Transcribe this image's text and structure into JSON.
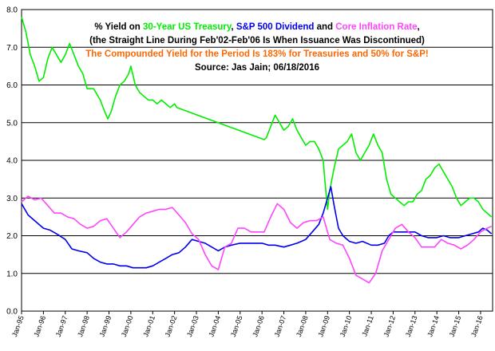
{
  "chart_data": {
    "type": "line",
    "title_lines": [
      [
        {
          "text": "% Yield on ",
          "color": "#000000"
        },
        {
          "text": "30-Year US Treasury",
          "color": "#00ee00"
        },
        {
          "text": ", ",
          "color": "#000000"
        },
        {
          "text": "S&P 500 Dividend",
          "color": "#0000ee"
        },
        {
          "text": " and ",
          "color": "#000000"
        },
        {
          "text": "Core Inflation Rate",
          "color": "#ff44ff"
        },
        {
          "text": ",",
          "color": "#000000"
        }
      ],
      [
        {
          "text": "(the Straight Line During Feb'02-Feb'06 Is When Issuance Was Discontinued)",
          "color": "#000000"
        }
      ],
      [
        {
          "text": "The Compounded Yield for the Period Is 183% for Treasuries and 50% for S&P!",
          "color": "#ff6600"
        }
      ],
      [
        {
          "text": "Source: Jas Jain; 06/18/2016",
          "color": "#000000"
        }
      ]
    ],
    "x_tick_labels": [
      "Jan-95",
      "Jan-96",
      "Jan-97",
      "Jan-98",
      "Jan-99",
      "Jan-00",
      "Jan-01",
      "Jan-02",
      "Jan-03",
      "Jan-04",
      "Jan-05",
      "Jan-06",
      "Jan-07",
      "Jan-08",
      "Jan-09",
      "Jan-10",
      "Jan-11",
      "Jan-12",
      "Jan-13",
      "Jan-14",
      "Jan-15",
      "Jan-16"
    ],
    "x_range": [
      1995.0,
      2016.55
    ],
    "ylim": [
      0,
      8
    ],
    "y_ticks": [
      0,
      1,
      2,
      3,
      4,
      5,
      6,
      7,
      8
    ],
    "y_tick_labels": [
      "0.0",
      "1.0",
      "2.0",
      "3.0",
      "4.0",
      "5.0",
      "6.0",
      "7.0",
      "8.0"
    ],
    "grid": "horizontal",
    "series": [
      {
        "name": "30-Year US Treasury",
        "color": "#00ee00",
        "x": [
          1995.0,
          1995.2,
          1995.4,
          1995.6,
          1995.8,
          1996.0,
          1996.2,
          1996.4,
          1996.6,
          1996.8,
          1997.0,
          1997.2,
          1997.4,
          1997.6,
          1997.8,
          1998.0,
          1998.3,
          1998.6,
          1998.8,
          1998.95,
          1999.1,
          1999.3,
          1999.5,
          1999.7,
          1999.9,
          2000.0,
          2000.2,
          2000.4,
          2000.6,
          2000.8,
          2001.0,
          2001.2,
          2001.4,
          2001.6,
          2001.8,
          2002.0,
          2002.1,
          2006.1,
          2006.2,
          2006.4,
          2006.6,
          2006.8,
          2007.0,
          2007.2,
          2007.4,
          2007.6,
          2007.8,
          2008.0,
          2008.2,
          2008.4,
          2008.6,
          2008.8,
          2008.9,
          2009.0,
          2009.1,
          2009.3,
          2009.5,
          2009.7,
          2009.9,
          2010.1,
          2010.3,
          2010.5,
          2010.7,
          2010.9,
          2011.1,
          2011.3,
          2011.5,
          2011.7,
          2011.9,
          2012.1,
          2012.3,
          2012.5,
          2012.7,
          2012.9,
          2013.1,
          2013.3,
          2013.5,
          2013.7,
          2013.9,
          2014.1,
          2014.3,
          2014.5,
          2014.7,
          2014.9,
          2015.1,
          2015.3,
          2015.5,
          2015.7,
          2015.9,
          2016.1,
          2016.3,
          2016.5
        ],
        "values": [
          7.8,
          7.4,
          6.8,
          6.5,
          6.1,
          6.2,
          6.7,
          7.0,
          6.8,
          6.6,
          6.8,
          7.1,
          6.8,
          6.5,
          6.3,
          5.9,
          5.9,
          5.6,
          5.3,
          5.1,
          5.3,
          5.7,
          6.0,
          6.1,
          6.3,
          6.5,
          6.0,
          5.8,
          5.7,
          5.6,
          5.6,
          5.5,
          5.6,
          5.5,
          5.4,
          5.5,
          5.4,
          4.55,
          4.6,
          4.9,
          5.2,
          5.0,
          4.8,
          4.9,
          5.1,
          4.8,
          4.6,
          4.4,
          4.5,
          4.5,
          4.3,
          4.0,
          3.3,
          2.7,
          3.2,
          3.8,
          4.3,
          4.4,
          4.5,
          4.7,
          4.2,
          4.0,
          4.2,
          4.4,
          4.7,
          4.4,
          4.2,
          3.5,
          3.1,
          3.0,
          2.9,
          2.8,
          2.9,
          2.9,
          3.1,
          3.2,
          3.5,
          3.6,
          3.8,
          3.9,
          3.7,
          3.5,
          3.3,
          3.0,
          2.8,
          2.9,
          3.0,
          3.0,
          2.9,
          2.7,
          2.6,
          2.5
        ]
      },
      {
        "name": "S&P 500 Dividend",
        "color": "#0000ee",
        "x": [
          1995.0,
          1995.3,
          1995.6,
          1996.0,
          1996.3,
          1996.6,
          1997.0,
          1997.3,
          1997.6,
          1998.0,
          1998.3,
          1998.6,
          1998.9,
          1999.2,
          1999.5,
          1999.8,
          2000.1,
          2000.4,
          2000.7,
          2001.0,
          2001.3,
          2001.6,
          2001.9,
          2002.2,
          2002.5,
          2002.8,
          2003.1,
          2003.4,
          2003.7,
          2004.0,
          2004.3,
          2004.6,
          2005.0,
          2005.3,
          2005.6,
          2006.0,
          2006.3,
          2006.6,
          2007.0,
          2007.3,
          2007.6,
          2008.0,
          2008.3,
          2008.6,
          2008.8,
          2009.0,
          2009.15,
          2009.3,
          2009.5,
          2009.7,
          2010.0,
          2010.3,
          2010.6,
          2011.0,
          2011.3,
          2011.6,
          2011.8,
          2012.0,
          2012.3,
          2012.6,
          2013.0,
          2013.3,
          2013.6,
          2014.0,
          2014.3,
          2014.6,
          2015.0,
          2015.3,
          2015.6,
          2015.9,
          2016.1,
          2016.3,
          2016.5
        ],
        "values": [
          2.85,
          2.55,
          2.4,
          2.2,
          2.15,
          2.05,
          1.9,
          1.65,
          1.6,
          1.55,
          1.4,
          1.3,
          1.25,
          1.25,
          1.2,
          1.2,
          1.15,
          1.15,
          1.15,
          1.2,
          1.3,
          1.4,
          1.5,
          1.55,
          1.7,
          1.9,
          1.85,
          1.8,
          1.7,
          1.6,
          1.7,
          1.75,
          1.8,
          1.8,
          1.8,
          1.8,
          1.75,
          1.75,
          1.7,
          1.75,
          1.8,
          1.9,
          2.1,
          2.3,
          2.6,
          3.0,
          3.3,
          2.8,
          2.2,
          2.0,
          1.85,
          1.8,
          1.85,
          1.75,
          1.75,
          1.8,
          2.0,
          2.1,
          2.1,
          2.1,
          2.1,
          2.0,
          1.95,
          1.95,
          2.0,
          1.95,
          1.95,
          2.0,
          2.05,
          2.1,
          2.2,
          2.15,
          2.05
        ]
      },
      {
        "name": "Core Inflation Rate",
        "color": "#ff44ff",
        "x": [
          1995.0,
          1995.3,
          1995.6,
          1995.9,
          1996.2,
          1996.5,
          1996.8,
          1997.1,
          1997.4,
          1997.7,
          1998.0,
          1998.3,
          1998.6,
          1998.9,
          1999.2,
          1999.5,
          1999.8,
          2000.1,
          2000.4,
          2000.7,
          2001.0,
          2001.3,
          2001.6,
          2001.9,
          2002.2,
          2002.5,
          2002.8,
          2003.1,
          2003.4,
          2003.7,
          2004.0,
          2004.3,
          2004.6,
          2004.9,
          2005.2,
          2005.5,
          2005.8,
          2006.1,
          2006.4,
          2006.7,
          2007.0,
          2007.3,
          2007.6,
          2007.9,
          2008.2,
          2008.5,
          2008.8,
          2009.1,
          2009.4,
          2009.7,
          2010.0,
          2010.3,
          2010.6,
          2010.9,
          2011.2,
          2011.5,
          2011.8,
          2012.1,
          2012.4,
          2012.7,
          2013.0,
          2013.3,
          2013.6,
          2013.9,
          2014.2,
          2014.5,
          2014.8,
          2015.1,
          2015.4,
          2015.7,
          2016.0,
          2016.3,
          2016.5
        ],
        "values": [
          2.9,
          3.05,
          2.95,
          3.0,
          2.8,
          2.6,
          2.6,
          2.5,
          2.45,
          2.3,
          2.2,
          2.25,
          2.4,
          2.45,
          2.2,
          1.95,
          2.1,
          2.3,
          2.5,
          2.6,
          2.65,
          2.7,
          2.7,
          2.75,
          2.55,
          2.35,
          2.05,
          1.9,
          1.5,
          1.2,
          1.1,
          1.7,
          1.8,
          2.2,
          2.2,
          2.1,
          2.1,
          2.1,
          2.5,
          2.85,
          2.7,
          2.35,
          2.2,
          2.35,
          2.4,
          2.4,
          2.5,
          1.9,
          1.8,
          1.75,
          1.4,
          0.95,
          0.85,
          0.75,
          1.0,
          1.6,
          1.9,
          2.2,
          2.3,
          2.1,
          1.95,
          1.7,
          1.7,
          1.7,
          1.9,
          1.8,
          1.75,
          1.65,
          1.75,
          1.9,
          2.1,
          2.2,
          2.25
        ]
      }
    ]
  }
}
